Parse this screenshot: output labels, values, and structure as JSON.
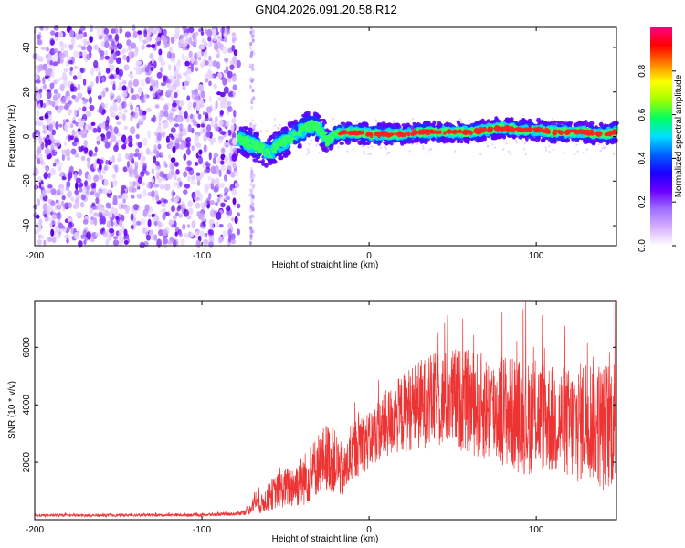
{
  "figure": {
    "title": "GN04.2026.091.20.58.R12"
  },
  "chart_data": [
    {
      "type": "heatmap",
      "title": "GN04.2026.091.20.58.R12",
      "xlabel": "Height of straight line (km)",
      "ylabel": "Frequency (Hz)",
      "xlim": [
        -200,
        148
      ],
      "ylim": [
        -49,
        49
      ],
      "xticks": [
        -200,
        -100,
        0,
        100
      ],
      "yticks": [
        -40,
        -20,
        0,
        20,
        40
      ],
      "colorbar": {
        "label": "Normalized spectral amplitude",
        "range": [
          0,
          1
        ],
        "ticks": [
          0.0,
          0.2,
          0.4,
          0.6,
          0.8
        ],
        "colors": [
          "#ffffff",
          "#d8b0ff",
          "#a070ff",
          "#6a00ff",
          "#1a00ff",
          "#0060ff",
          "#00e0ff",
          "#00ff60",
          "#a0ff00",
          "#ffff00",
          "#ff8000",
          "#ff0000",
          "#ff0080"
        ]
      },
      "noise_region": {
        "x_start": -200,
        "x_end": -78,
        "secondary_x": -70
      },
      "signal_ridge": {
        "x": [
          -78,
          -72,
          -65,
          -60,
          -55,
          -50,
          -45,
          -40,
          -35,
          -30,
          -25,
          -20,
          -10,
          0,
          10,
          20,
          30,
          40,
          50,
          60,
          70,
          80,
          90,
          100,
          110,
          120,
          130,
          140,
          148
        ],
        "y": [
          -1,
          -3,
          -5,
          -8,
          -4,
          -2,
          0,
          3,
          5,
          4,
          -2,
          1,
          2,
          1,
          1,
          1,
          2,
          2,
          2,
          2,
          3,
          4,
          3,
          3,
          2,
          2,
          2,
          1,
          2
        ]
      },
      "grid": false
    },
    {
      "type": "line",
      "xlabel": "Height of straight line (km)",
      "ylabel": "SNR (10 * v/v)",
      "xlim": [
        -200,
        148
      ],
      "ylim": [
        0,
        7600
      ],
      "xticks": [
        -200,
        -100,
        0,
        100
      ],
      "yticks": [
        2000,
        4000,
        6000
      ],
      "series": [
        {
          "color": "#ee3333",
          "x": [
            -200,
            -180,
            -160,
            -140,
            -120,
            -100,
            -80,
            -72,
            -68,
            -65,
            -60,
            -55,
            -50,
            -45,
            -40,
            -35,
            -30,
            -25,
            -20,
            -15,
            -10,
            -5,
            0,
            5,
            10,
            15,
            20,
            25,
            30,
            35,
            40,
            45,
            50,
            55,
            60,
            65,
            70,
            75,
            80,
            85,
            90,
            95,
            100,
            105,
            110,
            115,
            120,
            125,
            130,
            135,
            140,
            145,
            148
          ],
          "y": [
            150,
            150,
            150,
            160,
            160,
            170,
            200,
            300,
            700,
            500,
            800,
            1000,
            1100,
            1200,
            1350,
            1600,
            2000,
            2200,
            2000,
            1600,
            2300,
            2800,
            2700,
            3100,
            3300,
            3500,
            3700,
            3900,
            4000,
            4100,
            4150,
            4200,
            4200,
            4200,
            4100,
            4000,
            3900,
            3800,
            3900,
            3700,
            3600,
            3500,
            3700,
            3600,
            3500,
            3400,
            3300,
            3300,
            3600,
            3500,
            3200,
            3400,
            3500
          ],
          "spread": [
            50,
            50,
            50,
            50,
            50,
            60,
            60,
            120,
            400,
            300,
            500,
            600,
            700,
            800,
            900,
            1000,
            1100,
            1200,
            1100,
            900,
            1000,
            1200,
            1000,
            1100,
            1200,
            1300,
            1400,
            1500,
            1600,
            1600,
            1700,
            1700,
            1800,
            1800,
            1800,
            1900,
            1900,
            1900,
            2000,
            2000,
            2000,
            2000,
            2000,
            2000,
            2000,
            2000,
            2000,
            2100,
            2200,
            2200,
            2300,
            2300,
            2300
          ]
        }
      ],
      "grid": false
    }
  ]
}
